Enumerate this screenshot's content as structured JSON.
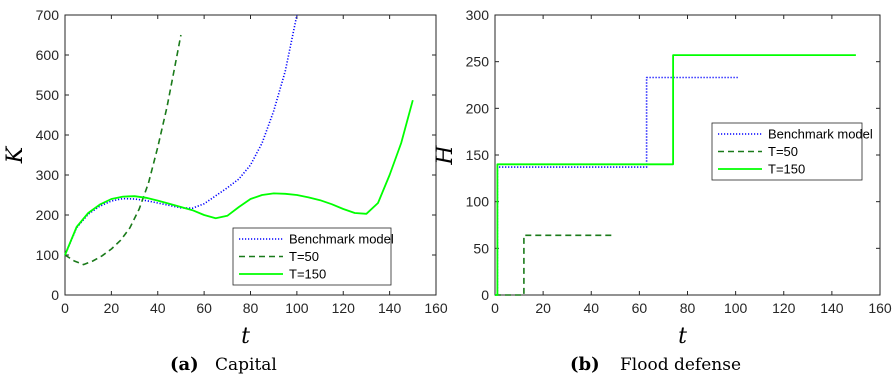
{
  "chart_data": [
    {
      "type": "line",
      "ylabel": "K",
      "xlabel": "t",
      "caption": {
        "letter": "(a)",
        "text": "Capital"
      },
      "xlim": [
        0,
        160
      ],
      "ylim": [
        0,
        700
      ],
      "xticks": [
        0,
        20,
        40,
        60,
        80,
        100,
        120,
        140,
        160
      ],
      "yticks": [
        0,
        100,
        200,
        300,
        400,
        500,
        600,
        700
      ],
      "grid": false,
      "legend_position": "bottom-right",
      "series": [
        {
          "name": "Benchmark model",
          "color": "#0000ff",
          "style": "dotted",
          "x": [
            0,
            5,
            10,
            15,
            20,
            25,
            30,
            35,
            40,
            45,
            50,
            55,
            60,
            65,
            70,
            75,
            80,
            85,
            90,
            95,
            100
          ],
          "y": [
            100,
            168,
            202,
            222,
            235,
            241,
            240,
            236,
            230,
            224,
            218,
            217,
            228,
            248,
            268,
            290,
            325,
            380,
            460,
            560,
            700
          ]
        },
        {
          "name": "T=50",
          "color": "#1a7a1a",
          "style": "dashed",
          "x": [
            0,
            4,
            8,
            12,
            16,
            20,
            24,
            28,
            32,
            36,
            40,
            44,
            48,
            50
          ],
          "y": [
            100,
            85,
            76,
            85,
            98,
            115,
            137,
            168,
            215,
            280,
            370,
            470,
            590,
            650
          ]
        },
        {
          "name": "T=150",
          "color": "#00ff00",
          "style": "solid",
          "x": [
            0,
            5,
            10,
            15,
            20,
            25,
            30,
            35,
            40,
            45,
            50,
            55,
            60,
            65,
            70,
            75,
            80,
            85,
            90,
            95,
            100,
            105,
            110,
            115,
            120,
            125,
            130,
            135,
            140,
            145,
            150
          ],
          "y": [
            100,
            170,
            205,
            226,
            240,
            246,
            247,
            243,
            236,
            228,
            220,
            212,
            200,
            192,
            198,
            220,
            240,
            250,
            254,
            253,
            250,
            244,
            237,
            227,
            215,
            205,
            203,
            230,
            300,
            380,
            487
          ]
        }
      ]
    },
    {
      "type": "line",
      "ylabel": "H",
      "xlabel": "t",
      "caption": {
        "letter": "(b)",
        "text": "Flood defense"
      },
      "xlim": [
        0,
        160
      ],
      "ylim": [
        0,
        300
      ],
      "xticks": [
        0,
        20,
        40,
        60,
        80,
        100,
        120,
        140,
        160
      ],
      "yticks": [
        0,
        50,
        100,
        150,
        200,
        250,
        300
      ],
      "grid": false,
      "legend_position": "center-right",
      "series": [
        {
          "name": "Benchmark model",
          "color": "#0000ff",
          "style": "dotted",
          "x": [
            0,
            1,
            1,
            63,
            63,
            101
          ],
          "y": [
            0,
            0,
            137,
            137,
            233,
            233
          ]
        },
        {
          "name": "T=50",
          "color": "#1a7a1a",
          "style": "dashed",
          "x": [
            0,
            12,
            12,
            50
          ],
          "y": [
            0,
            0,
            64,
            64
          ]
        },
        {
          "name": "T=150",
          "color": "#00ff00",
          "style": "solid",
          "x": [
            0,
            1,
            1,
            74,
            74,
            150
          ],
          "y": [
            0,
            0,
            140,
            140,
            257,
            257
          ]
        }
      ]
    }
  ]
}
